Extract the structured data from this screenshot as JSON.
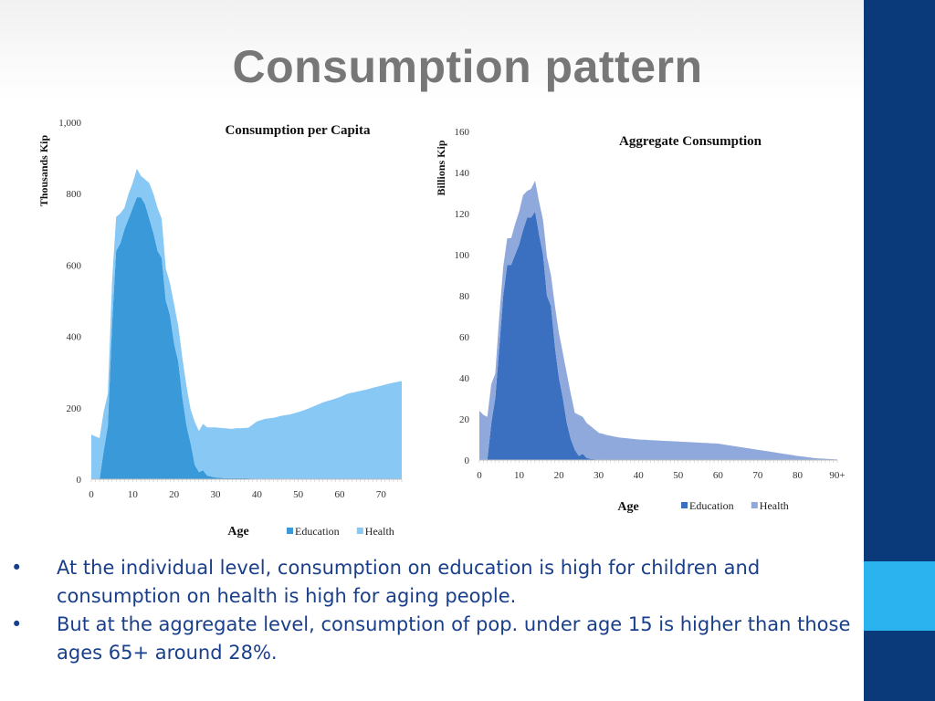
{
  "slide": {
    "title": "Consumption pattern",
    "colors": {
      "sidebar": "#0a3a7a",
      "accent": "#2ab3ee",
      "bullet_text": "#1a3f8a"
    },
    "bullets": [
      "At the individual level, consumption on education is high for children and consumption on health is high for aging people.",
      "But at the aggregate level, consumption of pop. under age 15 is higher than those ages 65+ around 28%."
    ]
  },
  "chart_data": [
    {
      "type": "area",
      "stacked": true,
      "title": "Consumption per Capita",
      "xlabel": "Age",
      "ylabel": "Thousands Kip",
      "xlim": [
        0,
        75
      ],
      "ylim": [
        0,
        1000
      ],
      "xticks": [
        "0",
        "10",
        "20",
        "30",
        "40",
        "50",
        "60",
        "70"
      ],
      "yticks": [
        "0",
        "200",
        "400",
        "600",
        "800",
        "1,000"
      ],
      "legend": "bottom",
      "series": [
        {
          "name": "Education",
          "color": "#3a9ad9",
          "x": [
            0,
            1,
            2,
            3,
            4,
            5,
            6,
            7,
            8,
            9,
            10,
            11,
            12,
            13,
            14,
            15,
            16,
            17,
            18,
            19,
            20,
            21,
            22,
            23,
            24,
            25,
            26,
            27,
            28,
            30,
            32,
            35,
            40,
            45,
            50,
            60,
            70,
            75
          ],
          "values": [
            0,
            0,
            0,
            80,
            150,
            430,
            640,
            660,
            700,
            730,
            760,
            790,
            790,
            770,
            730,
            690,
            640,
            620,
            500,
            460,
            380,
            330,
            230,
            150,
            100,
            40,
            20,
            25,
            10,
            5,
            3,
            3,
            2,
            2,
            1,
            0,
            0,
            0
          ]
        },
        {
          "name": "Health",
          "color": "#88c8f5",
          "x": [
            0,
            1,
            2,
            3,
            4,
            5,
            6,
            7,
            8,
            9,
            10,
            11,
            12,
            13,
            14,
            15,
            16,
            17,
            18,
            19,
            20,
            21,
            22,
            23,
            24,
            25,
            26,
            27,
            28,
            30,
            32,
            34,
            35,
            36,
            38,
            40,
            42,
            44,
            46,
            48,
            50,
            52,
            54,
            56,
            58,
            60,
            62,
            64,
            66,
            68,
            70,
            72,
            75
          ],
          "values": [
            125,
            120,
            115,
            110,
            90,
            120,
            95,
            85,
            60,
            70,
            70,
            80,
            60,
            70,
            100,
            110,
            120,
            110,
            90,
            90,
            110,
            100,
            110,
            110,
            95,
            120,
            115,
            130,
            135,
            140,
            140,
            138,
            140,
            140,
            142,
            160,
            167,
            170,
            176,
            180,
            187,
            195,
            205,
            215,
            222,
            230,
            240,
            245,
            250,
            256,
            262,
            268,
            275
          ]
        }
      ]
    },
    {
      "type": "area",
      "stacked": true,
      "title": "Aggregate Consumption",
      "xlabel": "Age",
      "ylabel": "Billions Kip",
      "xlim": [
        0,
        90
      ],
      "ylim": [
        0,
        160
      ],
      "xticks": [
        "0",
        "10",
        "20",
        "30",
        "40",
        "50",
        "60",
        "70",
        "80",
        "90+"
      ],
      "yticks": [
        "0",
        "20",
        "40",
        "60",
        "80",
        "100",
        "120",
        "140",
        "160"
      ],
      "legend": "bottom",
      "series": [
        {
          "name": "Education",
          "color": "#3b6fbf",
          "x": [
            0,
            1,
            2,
            3,
            4,
            5,
            6,
            7,
            8,
            9,
            10,
            11,
            12,
            13,
            14,
            15,
            16,
            17,
            18,
            19,
            20,
            21,
            22,
            23,
            24,
            25,
            26,
            27,
            28,
            30,
            32,
            35,
            40,
            50,
            60,
            70,
            80,
            90
          ],
          "values": [
            0,
            0,
            0,
            18,
            30,
            55,
            80,
            95,
            95,
            100,
            105,
            112,
            118,
            118,
            121,
            110,
            100,
            80,
            75,
            55,
            40,
            30,
            18,
            10,
            5,
            2,
            3,
            1,
            0.5,
            0.3,
            0,
            0,
            0,
            0,
            0,
            0,
            0,
            0
          ]
        },
        {
          "name": "Health",
          "color": "#8fa9dc",
          "x": [
            0,
            1,
            2,
            3,
            4,
            5,
            6,
            7,
            8,
            9,
            10,
            11,
            12,
            13,
            14,
            15,
            16,
            17,
            18,
            19,
            20,
            21,
            22,
            23,
            24,
            25,
            26,
            27,
            28,
            30,
            35,
            40,
            45,
            50,
            55,
            60,
            65,
            70,
            75,
            80,
            85,
            90
          ],
          "values": [
            24,
            22,
            21,
            19,
            12,
            15,
            14,
            13,
            13,
            15,
            16,
            17,
            13,
            14,
            15,
            16,
            17,
            19,
            15,
            20,
            22,
            22,
            24,
            22,
            18,
            20,
            18,
            17,
            16,
            13,
            11,
            10,
            9.5,
            9,
            8.5,
            8,
            6.5,
            5,
            3.5,
            2,
            0.8,
            0.3
          ]
        }
      ]
    }
  ]
}
